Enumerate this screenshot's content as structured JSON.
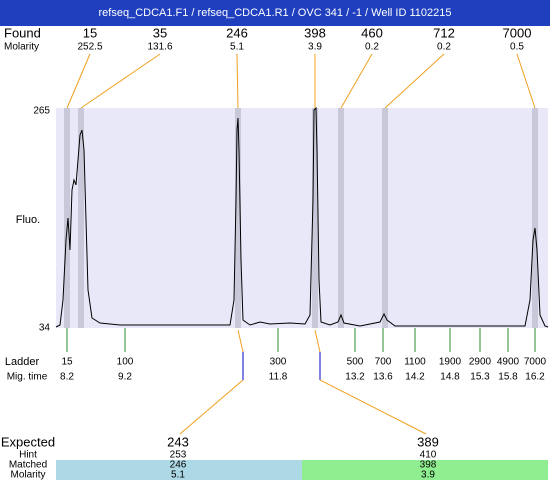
{
  "header": {
    "title": "refseq_CDCA1.F1 / refseq_CDCA1.R1 / OVC 341 / -1 / Well ID 1102215"
  },
  "found": {
    "label": "Found",
    "sublabel": "Molarity",
    "peaks": [
      {
        "size": "15",
        "molarity": "252.5"
      },
      {
        "size": "35",
        "molarity": "131.6"
      },
      {
        "size": "246",
        "molarity": "5.1"
      },
      {
        "size": "398",
        "molarity": "3.9"
      },
      {
        "size": "460",
        "molarity": "0.2"
      },
      {
        "size": "712",
        "molarity": "0.2"
      },
      {
        "size": "7000",
        "molarity": "0.5"
      }
    ]
  },
  "axis": {
    "label": "Fluo.",
    "top": "265",
    "bottom": "34"
  },
  "ladder": {
    "label": "Ladder",
    "sublabel": "Mig. time",
    "items": [
      {
        "size": "15",
        "time": "8.2"
      },
      {
        "size": "100",
        "time": "9.2"
      },
      {
        "size": "300",
        "time": "11.8"
      },
      {
        "size": "500",
        "time": "13.2"
      },
      {
        "size": "700",
        "time": "13.6"
      },
      {
        "size": "1100",
        "time": "14.2"
      },
      {
        "size": "1900",
        "time": "14.8"
      },
      {
        "size": "2900",
        "time": "15.3"
      },
      {
        "size": "4900",
        "time": "15.8"
      },
      {
        "size": "7000",
        "time": "16.2"
      }
    ]
  },
  "expected": {
    "label": "Expected",
    "hint_label": "Hint",
    "matched_label": "Matched",
    "molarity_label": "Molarity",
    "items": [
      {
        "size": "243",
        "hint": "253",
        "matched": "246",
        "molarity": "5.1"
      },
      {
        "size": "389",
        "hint": "410",
        "matched": "398",
        "molarity": "3.9"
      }
    ]
  }
}
